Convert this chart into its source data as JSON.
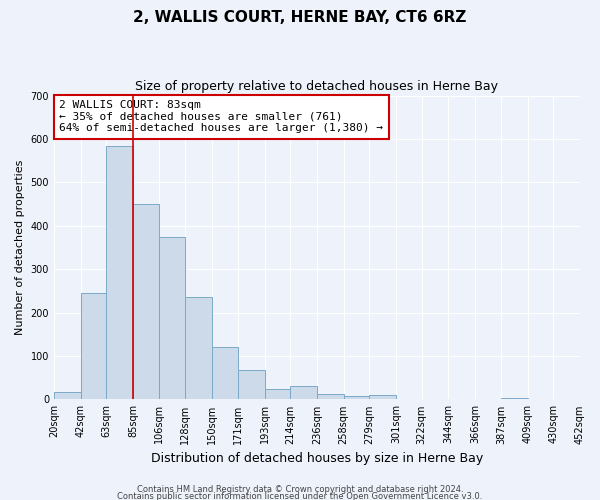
{
  "title": "2, WALLIS COURT, HERNE BAY, CT6 6RZ",
  "subtitle": "Size of property relative to detached houses in Herne Bay",
  "xlabel": "Distribution of detached houses by size in Herne Bay",
  "ylabel": "Number of detached properties",
  "bar_color": "#ccdaea",
  "bar_edge_color": "#7aaac8",
  "bin_edges": [
    20,
    42,
    63,
    85,
    106,
    128,
    150,
    171,
    193,
    214,
    236,
    258,
    279,
    301,
    322,
    344,
    366,
    387,
    409,
    430,
    452
  ],
  "bin_labels": [
    "20sqm",
    "42sqm",
    "63sqm",
    "85sqm",
    "106sqm",
    "128sqm",
    "150sqm",
    "171sqm",
    "193sqm",
    "214sqm",
    "236sqm",
    "258sqm",
    "279sqm",
    "301sqm",
    "322sqm",
    "344sqm",
    "366sqm",
    "387sqm",
    "409sqm",
    "430sqm",
    "452sqm"
  ],
  "counts": [
    18,
    245,
    583,
    450,
    375,
    235,
    120,
    67,
    24,
    30,
    12,
    8,
    10,
    0,
    0,
    0,
    0,
    3,
    0,
    0
  ],
  "vline_x": 85,
  "vline_color": "#cc0000",
  "ylim": [
    0,
    700
  ],
  "yticks": [
    0,
    100,
    200,
    300,
    400,
    500,
    600,
    700
  ],
  "annotation_text": "2 WALLIS COURT: 83sqm\n← 35% of detached houses are smaller (761)\n64% of semi-detached houses are larger (1,380) →",
  "annotation_box_color": "#ffffff",
  "annotation_box_edge_color": "#cc0000",
  "footer1": "Contains HM Land Registry data © Crown copyright and database right 2024.",
  "footer2": "Contains public sector information licensed under the Open Government Licence v3.0.",
  "background_color": "#eef2fa",
  "grid_color": "#ffffff",
  "title_fontsize": 11,
  "subtitle_fontsize": 9,
  "ylabel_fontsize": 8,
  "xlabel_fontsize": 9,
  "tick_fontsize": 7,
  "annotation_fontsize": 8,
  "footer_fontsize": 6
}
